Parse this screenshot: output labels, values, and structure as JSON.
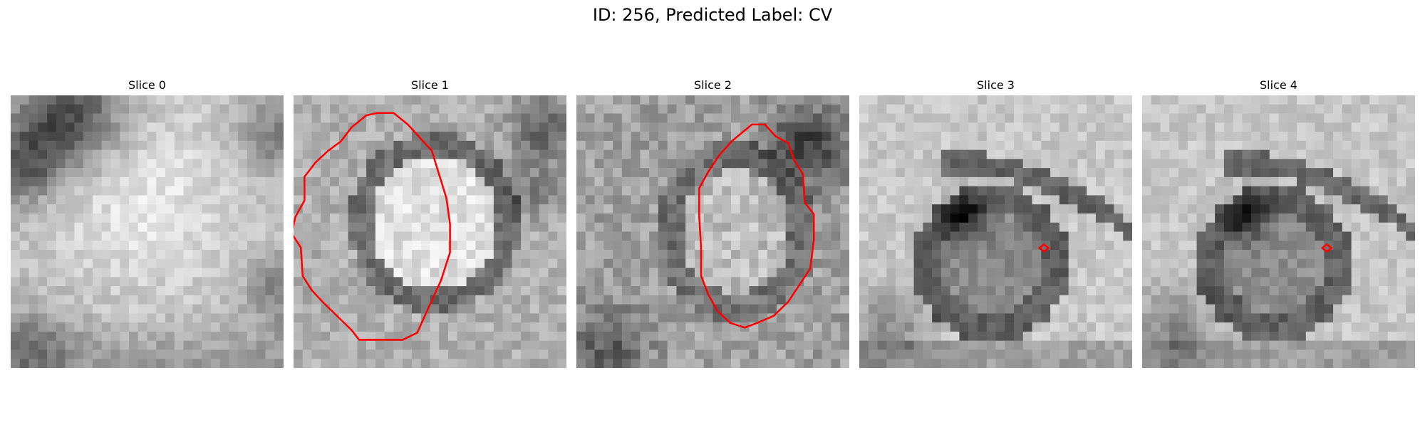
{
  "figure": {
    "title": "ID: 256, Predicted Label: CV"
  },
  "panels": [
    {
      "title": "Slice 0",
      "contour": "none"
    },
    {
      "title": "Slice 1",
      "contour": "polygon"
    },
    {
      "title": "Slice 2",
      "contour": "polygon"
    },
    {
      "title": "Slice 3",
      "contour": "point"
    },
    {
      "title": "Slice 4",
      "contour": "point"
    }
  ],
  "colors": {
    "contour": "#ff0000",
    "background": "#ffffff"
  }
}
